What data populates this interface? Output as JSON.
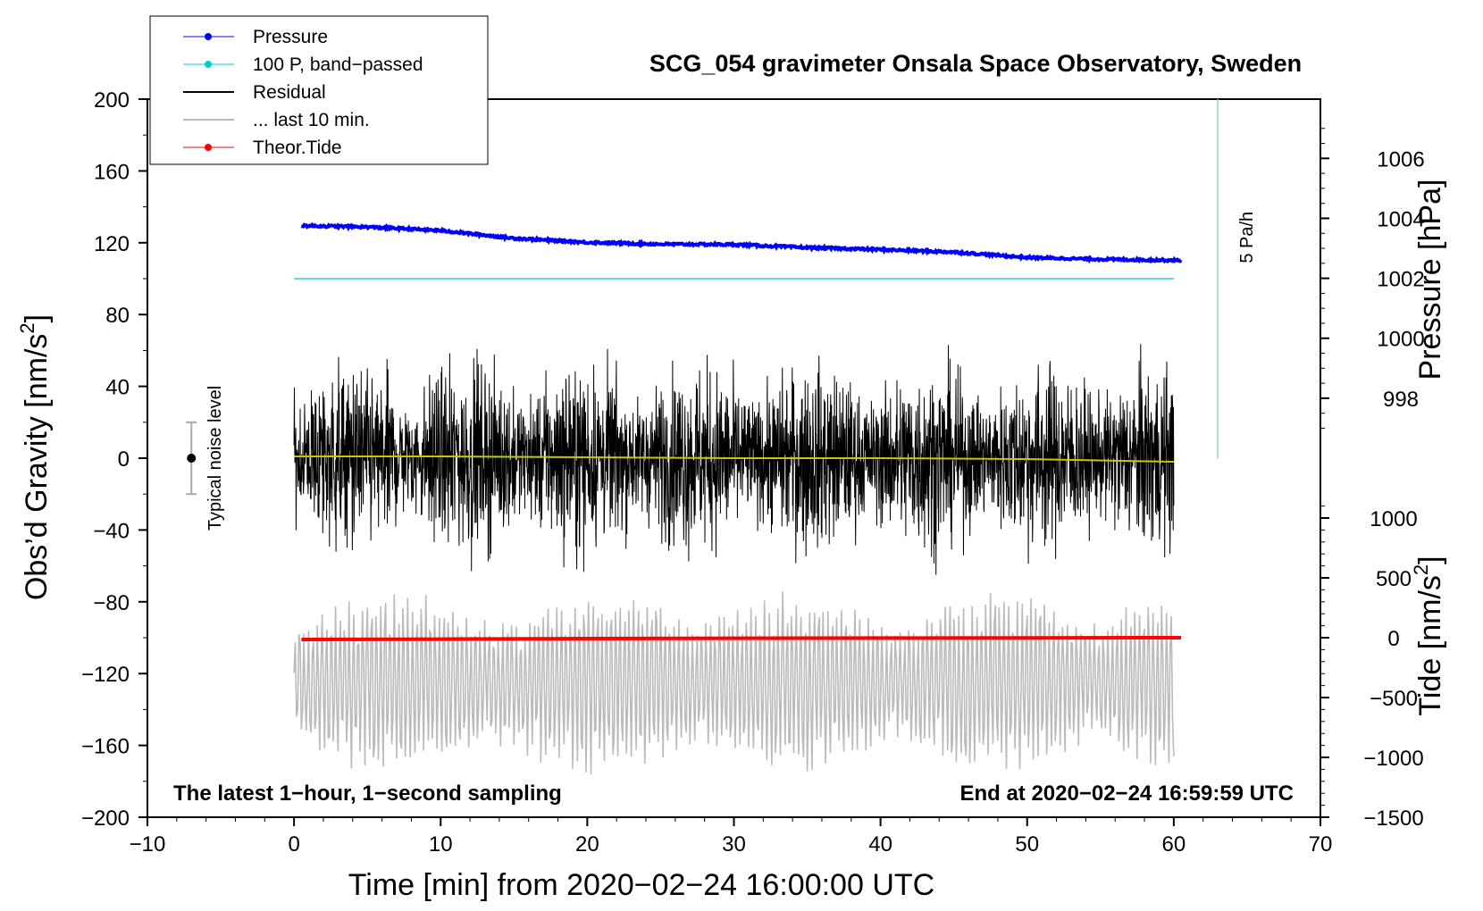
{
  "chart_data": {
    "type": "line",
    "title": "SCG_054 gravimeter Onsala Space Observatory, Sweden",
    "xlabel": "Time [min] from 2020−02−24 16:00:00 UTC",
    "ylabel": "Obs’d Gravity [nm/s²]",
    "ylabel_base": "Obs’d Gravity [nm/s",
    "ylabel_sup": "2",
    "ylabel_close": "]",
    "xlim": [
      -10,
      70
    ],
    "ylim": [
      -200,
      200
    ],
    "x_ticks": [
      -10,
      0,
      10,
      20,
      30,
      40,
      50,
      60,
      70
    ],
    "x_tick_labels": [
      "−10",
      "0",
      "10",
      "20",
      "30",
      "40",
      "50",
      "60",
      "70"
    ],
    "y_ticks": [
      200,
      160,
      120,
      80,
      40,
      0,
      -40,
      -80,
      -120,
      -160,
      -200
    ],
    "y_tick_labels": [
      "200",
      "160",
      "120",
      "80",
      "40",
      "0",
      "−40",
      "−80",
      "−120",
      "−160",
      "−200"
    ],
    "right_axes": {
      "pressure": {
        "label": "Pressure [hPa]",
        "ticks": [
          1006,
          1004,
          1002,
          1000,
          998
        ],
        "tick_labels": [
          "1006",
          "1004",
          "1002",
          "1000",
          "998"
        ],
        "gravity_at_1006": 167,
        "gravity_per_hpa": 16.7
      },
      "tide": {
        "label_base": "Tide [nm/s",
        "label_sup": "2",
        "label_close": "]",
        "ticks": [
          1000,
          500,
          0,
          -500,
          -1000,
          -1500
        ],
        "tick_labels": [
          "1000",
          "500",
          "0",
          "−500",
          "−1000",
          "−1500"
        ],
        "gravity_at_0": -100,
        "gravity_per_unit": 0.06667
      }
    },
    "legend": [
      {
        "label": "Pressure",
        "color": "#0000ff",
        "marker": true,
        "stroke": 1
      },
      {
        "label": "100 P, band−passed",
        "color": "#00cccc",
        "marker": true,
        "stroke": 1
      },
      {
        "label": "Residual",
        "color": "#000000",
        "marker": false,
        "stroke": 2
      },
      {
        "label": "... last 10 min.",
        "color": "#bbbbbb",
        "marker": false,
        "stroke": 2
      },
      {
        "label": "Theor.Tide",
        "color": "#ff0000",
        "marker": true,
        "stroke": 1
      }
    ],
    "series": [
      {
        "name": "Pressure",
        "color": "#0000ff",
        "units": "nm/s² (plot scale)",
        "x": [
          0.5,
          5,
          10,
          15,
          20,
          25,
          30,
          35,
          40,
          45,
          50,
          55,
          60.5
        ],
        "y": [
          129.5,
          128.8,
          126.8,
          122.5,
          120.2,
          119.2,
          119.0,
          117.3,
          116.2,
          114.8,
          111.8,
          110.8,
          110.2
        ]
      },
      {
        "name": "100 P, band−passed",
        "color": "#00cccc",
        "x": [
          0,
          60
        ],
        "y": [
          100,
          100
        ]
      },
      {
        "name": "Residual",
        "color": "#000000",
        "x_range": [
          0,
          60
        ],
        "envelope": [
          -65,
          70
        ],
        "typical_amplitude": 25
      },
      {
        "name": "Residual mean",
        "color": "#c8c800",
        "x": [
          0,
          10,
          20,
          30,
          40,
          50,
          60
        ],
        "y": [
          1,
          1,
          0.5,
          0,
          0,
          -0.5,
          -2
        ]
      },
      {
        "name": "... last 10 min.",
        "color": "#bbbbbb",
        "x_range": [
          0,
          60
        ],
        "center": -125,
        "envelope": [
          -180,
          -60
        ]
      },
      {
        "name": "Theor.Tide",
        "color": "#ff0000",
        "x": [
          0.5,
          10,
          20,
          30,
          40,
          50,
          60.5
        ],
        "y": [
          -101,
          -100.8,
          -100.5,
          -100.3,
          -100.2,
          -100.1,
          -100
        ]
      }
    ],
    "noise_bar": {
      "x": -7,
      "center": 0,
      "low": -20,
      "high": 20,
      "label": "Typical noise level"
    },
    "scale_bar": {
      "x": 63,
      "y_from": 200,
      "y_to": 0,
      "label": "5 Pa/h"
    },
    "annotations": {
      "left_note": "The latest 1−hour, 1−second sampling",
      "right_note": "End at 2020−02−24 16:59:59 UTC"
    }
  }
}
